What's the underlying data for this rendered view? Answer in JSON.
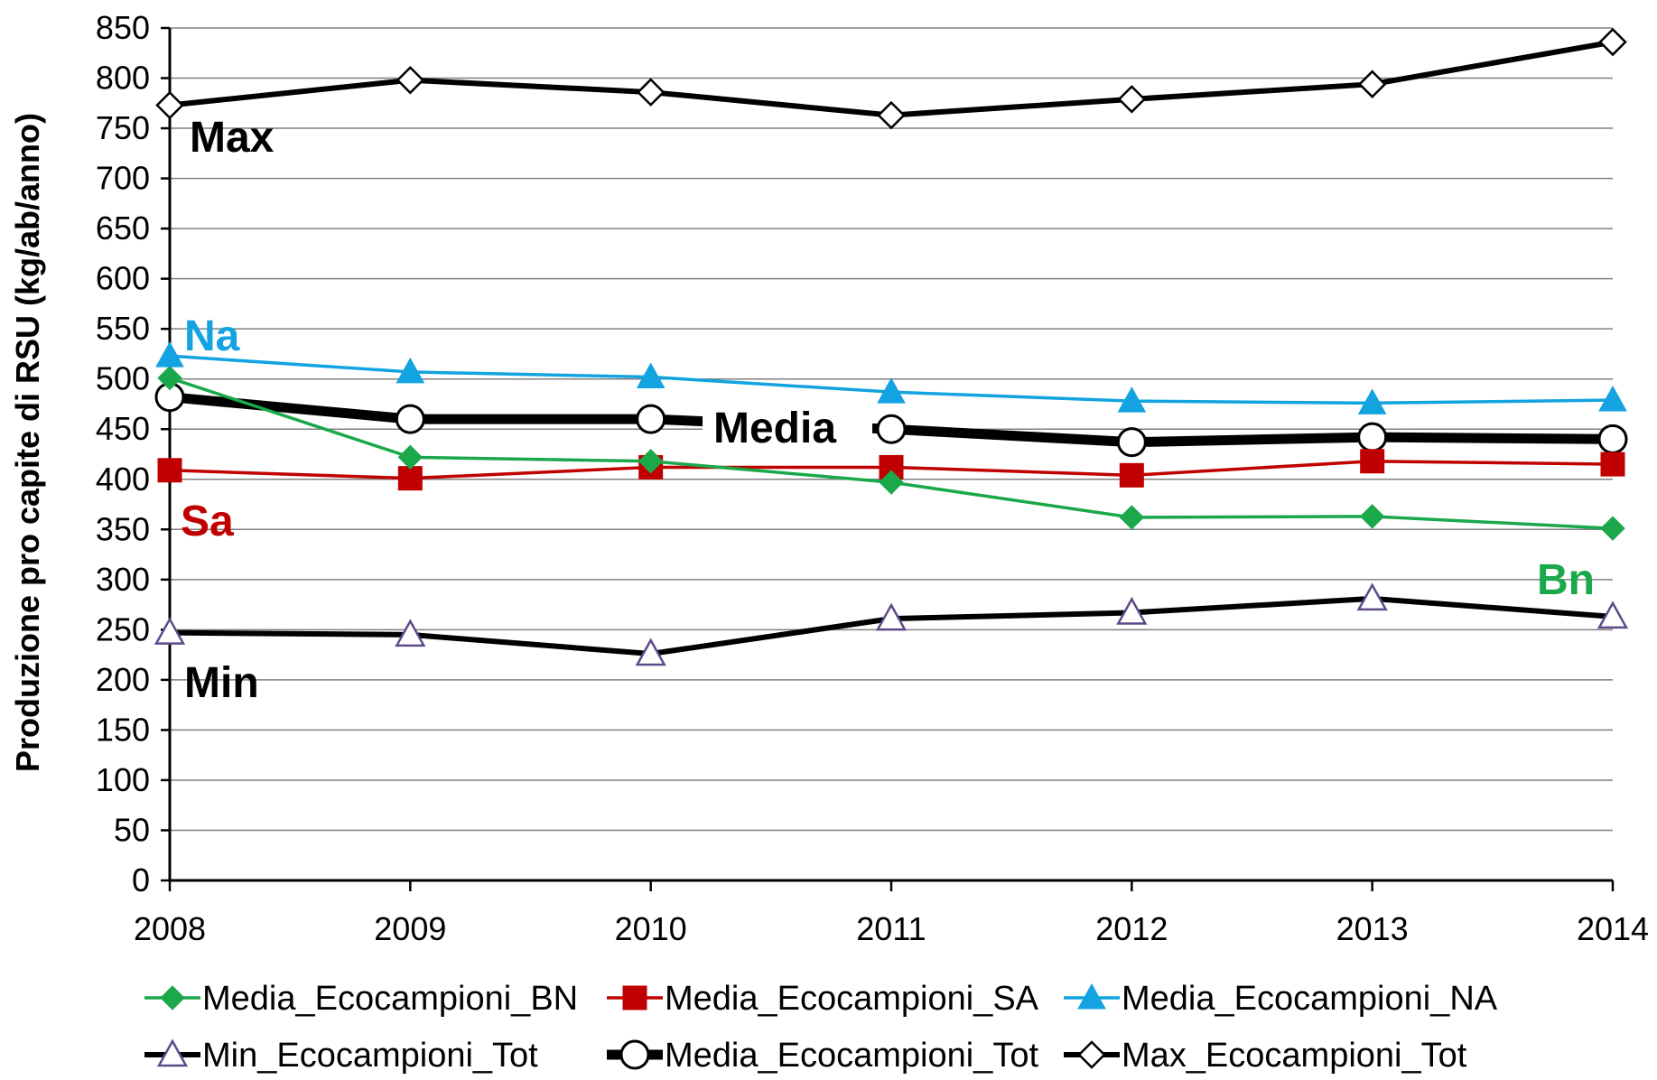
{
  "chart_data": {
    "type": "line",
    "xlabel": "",
    "ylabel": "Produzione pro capite di RSU (kg/ab/anno)",
    "x": [
      "2008",
      "2009",
      "2010",
      "2011",
      "2012",
      "2013",
      "2014"
    ],
    "ylim": [
      0,
      850
    ],
    "yticks": [
      0,
      50,
      100,
      150,
      200,
      250,
      300,
      350,
      400,
      450,
      500,
      550,
      600,
      650,
      700,
      750,
      800,
      850
    ],
    "grid": "horizontal",
    "legend_position": "bottom",
    "series": [
      {
        "name": "Media_Ecocampioni_BN",
        "color": "#1AA84A",
        "marker": "diamond-filled",
        "line": "thin",
        "values": [
          501,
          422,
          418,
          397,
          362,
          363,
          351
        ]
      },
      {
        "name": "Media_Ecocampioni_SA",
        "color": "#C00000",
        "marker": "square-filled",
        "line": "thin",
        "values": [
          409,
          401,
          412,
          412,
          404,
          418,
          415
        ]
      },
      {
        "name": "Media_Ecocampioni_NA",
        "color": "#12A3E0",
        "marker": "triangle-filled",
        "line": "thin",
        "values": [
          523,
          507,
          502,
          487,
          478,
          476,
          479
        ]
      },
      {
        "name": "Min_Ecocampioni_Tot",
        "color": "#000000",
        "marker": "triangle-open",
        "line": "medium",
        "values": [
          247,
          245,
          226,
          261,
          267,
          281,
          263
        ]
      },
      {
        "name": "Media_Ecocampioni_Tot",
        "color": "#000000",
        "marker": "circle-open",
        "line": "thick",
        "values": [
          482,
          460,
          460,
          450,
          437,
          442,
          440
        ]
      },
      {
        "name": "Max_Ecocampioni_Tot",
        "color": "#000000",
        "marker": "diamond-open",
        "line": "medium",
        "values": [
          773,
          798,
          786,
          763,
          779,
          794,
          836
        ]
      }
    ],
    "annotations": [
      {
        "text": "Max",
        "color": "#000000"
      },
      {
        "text": "Na",
        "color": "#12A3E0"
      },
      {
        "text": "Media",
        "color": "#000000"
      },
      {
        "text": "Sa",
        "color": "#C00000"
      },
      {
        "text": "Bn",
        "color": "#1AA84A"
      },
      {
        "text": "Min",
        "color": "#000000"
      }
    ]
  }
}
